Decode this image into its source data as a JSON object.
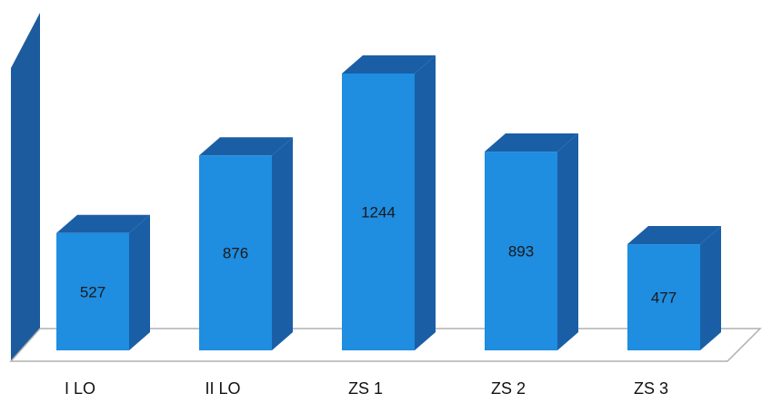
{
  "chart_data": {
    "type": "bar",
    "style": "3d-column",
    "categories": [
      "I LO",
      "II LO",
      "ZS 1",
      "ZS 2",
      "ZS 3"
    ],
    "values": [
      527,
      876,
      1244,
      893,
      477
    ],
    "data_labels": [
      "527",
      "876",
      "1244",
      "893",
      "477"
    ],
    "title": "",
    "xlabel": "",
    "ylabel": "",
    "ylim": [
      0,
      1600
    ],
    "grid": false,
    "legend": "none",
    "colors": {
      "bar_front": "#1f8de0",
      "bar_side": "#1a5fa6",
      "bar_top": "#1a5fa6",
      "wall": "#1c5b9e",
      "floor_edge": "#b0b0b0",
      "floor": "#ffffff"
    }
  }
}
